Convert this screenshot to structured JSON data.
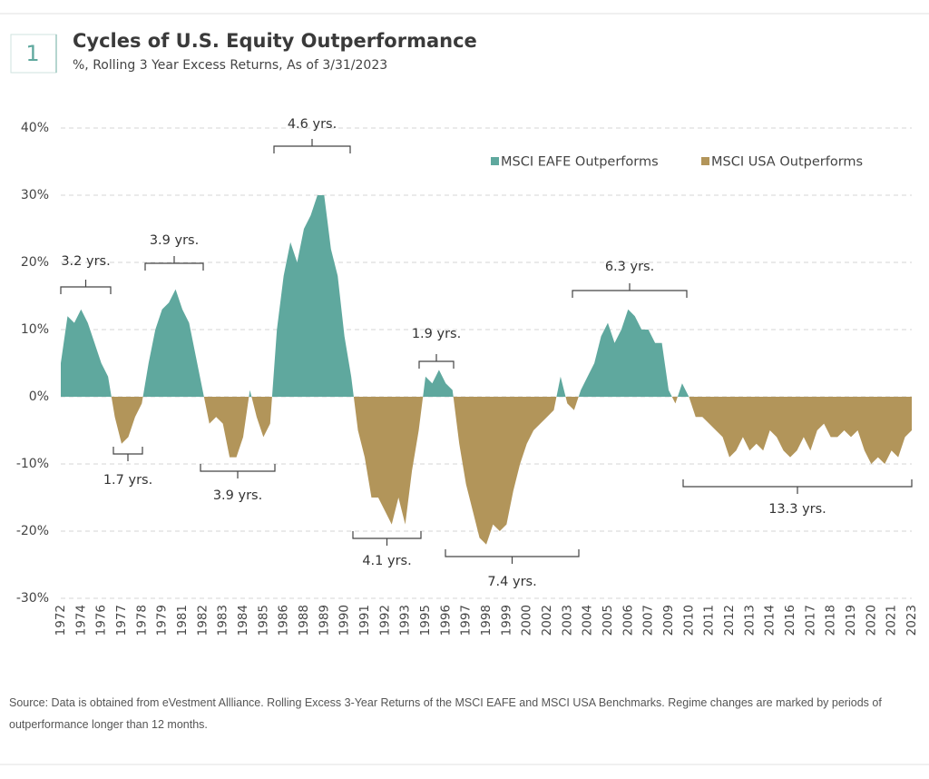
{
  "chart_data": {
    "type": "area",
    "figure_number": "1",
    "title": "Cycles of U.S. Equity Outperformance",
    "subtitle": "%, Rolling 3 Year Excess Returns, As of 3/31/2023",
    "source": "Source: Data is obtained from eVestment Allliance. Rolling Excess 3-Year Returns of the MSCI EAFE and MSCI USA Benchmarks. Regime changes are marked by periods of outperformance longer than 12 months.",
    "legend": [
      {
        "name": "MSCI EAFE Outperforms",
        "color": "#5fa89e"
      },
      {
        "name": "MSCI USA Outperforms",
        "color": "#b2955a"
      }
    ],
    "categories": [
      "1972",
      null,
      null,
      "1974",
      null,
      null,
      "1976",
      null,
      null,
      "1977",
      null,
      null,
      "1978",
      null,
      null,
      "1979",
      null,
      null,
      "1981",
      null,
      null,
      "1982",
      null,
      null,
      "1983",
      null,
      null,
      "1984",
      null,
      null,
      "1985",
      null,
      null,
      "1986",
      null,
      null,
      "1988",
      null,
      null,
      "1989",
      null,
      null,
      "1990",
      null,
      null,
      "1991",
      null,
      null,
      "1992",
      null,
      null,
      "1993",
      null,
      null,
      "1995",
      null,
      null,
      "1996",
      null,
      null,
      "1997",
      null,
      null,
      "1998",
      null,
      null,
      "1999",
      null,
      null,
      "2000",
      null,
      null,
      "2002",
      null,
      null,
      "2003",
      null,
      null,
      "2004",
      null,
      null,
      "2005",
      null,
      null,
      "2006",
      null,
      null,
      "2007",
      null,
      null,
      "2009",
      null,
      null,
      "2010",
      null,
      null,
      "2011",
      null,
      null,
      "2012",
      null,
      null,
      "2013",
      null,
      null,
      "2014",
      null,
      null,
      "2016",
      null,
      null,
      "2017",
      null,
      null,
      "2018",
      null,
      null,
      "2019",
      null,
      null,
      "2020",
      null,
      null,
      "2021",
      null,
      null,
      "2023"
    ],
    "values": [
      5,
      12,
      11,
      13,
      11,
      8,
      5,
      3,
      -3,
      -7,
      -6,
      -3,
      -1,
      5,
      10,
      13,
      14,
      16,
      13,
      11,
      6,
      1,
      -4,
      -3,
      -4,
      -9,
      -9,
      -6,
      1,
      -3,
      -6,
      -4,
      10,
      18,
      23,
      20,
      25,
      27,
      30,
      30,
      22,
      18,
      9,
      3,
      -5,
      -9,
      -15,
      -15,
      -17,
      -19,
      -15,
      -19,
      -11,
      -5,
      3,
      2,
      4,
      2,
      1,
      -7,
      -13,
      -17,
      -21,
      -22,
      -19,
      -20,
      -19,
      -14,
      -10,
      -7,
      -5,
      -4,
      -3,
      -2,
      3,
      -1,
      -2,
      1,
      3,
      5,
      9,
      11,
      8,
      10,
      13,
      12,
      10,
      10,
      8,
      8,
      1,
      -1,
      2,
      0,
      -3,
      -3,
      -4,
      -5,
      -6,
      -9,
      -8,
      -6,
      -8,
      -7,
      -8,
      -5,
      -6,
      -8,
      -9,
      -8,
      -6,
      -8,
      -5,
      -4,
      -6,
      -6,
      -5,
      -6,
      -5,
      -8,
      -10,
      -9,
      -10,
      -8,
      -9,
      -6,
      -5
    ],
    "ylim": [
      -30,
      40
    ],
    "yticks": [
      {
        "value": -30,
        "label": "-30%"
      },
      {
        "value": -20,
        "label": "-20%"
      },
      {
        "value": -10,
        "label": "-10%"
      },
      {
        "value": 0,
        "label": "0%"
      },
      {
        "value": 10,
        "label": "10%"
      },
      {
        "value": 20,
        "label": "20%"
      },
      {
        "value": 30,
        "label": "30%"
      },
      {
        "value": 40,
        "label": "40%"
      }
    ],
    "grid": true,
    "annotations": [
      "3.2 yrs.",
      "1.7 yrs.",
      "3.9 yrs.",
      "3.9 yrs.",
      "4.6 yrs.",
      "4.1 yrs.",
      "1.9 yrs.",
      "7.4 yrs.",
      "6.3 yrs.",
      "13.3 yrs."
    ]
  }
}
